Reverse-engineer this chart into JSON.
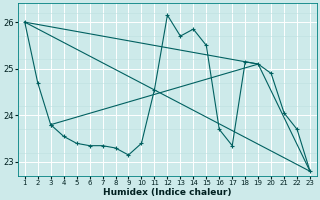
{
  "xlabel": "Humidex (Indice chaleur)",
  "xlim": [
    0.5,
    23.5
  ],
  "ylim": [
    22.7,
    26.4
  ],
  "yticks": [
    23,
    24,
    25,
    26
  ],
  "xticks": [
    1,
    2,
    3,
    4,
    5,
    6,
    7,
    8,
    9,
    10,
    11,
    12,
    13,
    14,
    15,
    16,
    17,
    18,
    19,
    20,
    21,
    22,
    23
  ],
  "bg_color": "#cdeaea",
  "grid_major_color": "#b0d4d4",
  "grid_minor_color": "#daf0f0",
  "line_color": "#006060",
  "zigzag": {
    "x": [
      1,
      2,
      3,
      3,
      4,
      5,
      6,
      7,
      8,
      9,
      10,
      11,
      12,
      13,
      14,
      15,
      16,
      17,
      18,
      19,
      20,
      21,
      22,
      23
    ],
    "y": [
      26.0,
      24.7,
      23.8,
      23.8,
      23.55,
      23.4,
      23.35,
      23.35,
      23.3,
      23.15,
      23.4,
      24.55,
      26.15,
      25.7,
      25.85,
      25.5,
      23.7,
      23.35,
      25.15,
      25.1,
      24.9,
      24.05,
      23.7,
      22.8
    ]
  },
  "trend1": {
    "x": [
      1,
      23
    ],
    "y": [
      26.0,
      22.8
    ]
  },
  "trend2": {
    "x": [
      1,
      19,
      23
    ],
    "y": [
      26.0,
      25.1,
      22.8
    ]
  },
  "trend3": {
    "x": [
      3,
      19
    ],
    "y": [
      23.8,
      25.1
    ]
  }
}
